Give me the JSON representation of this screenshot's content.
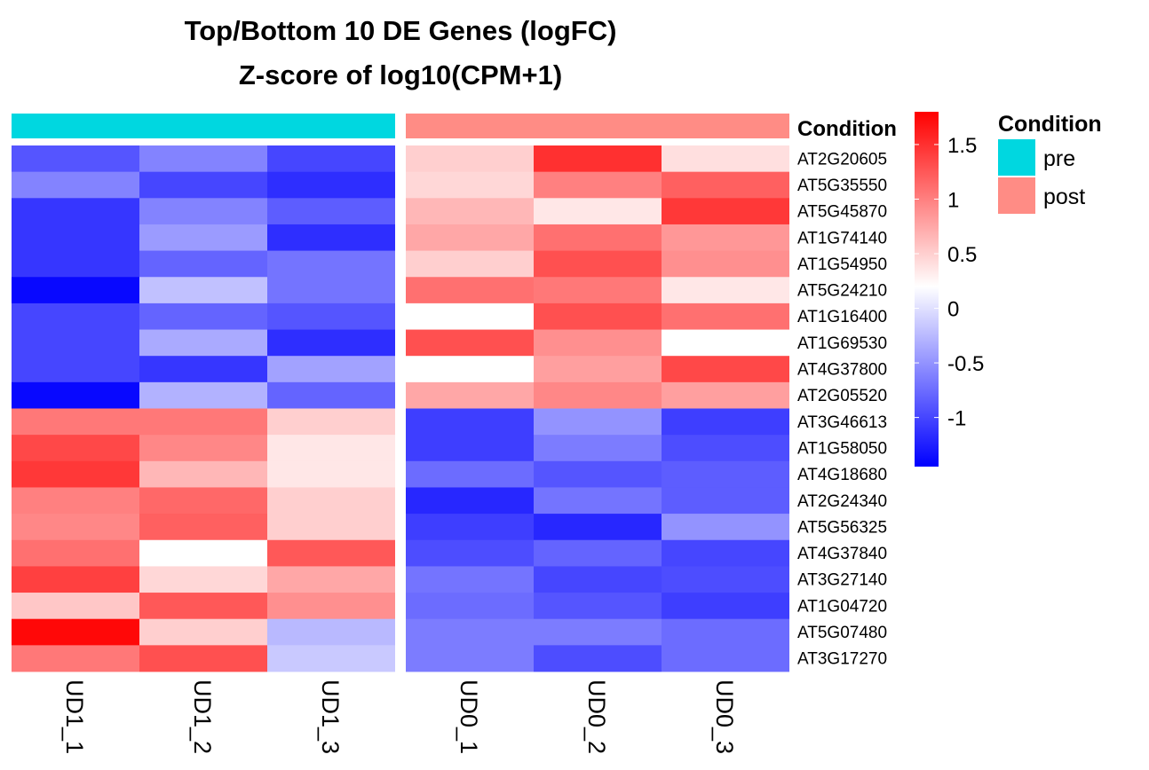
{
  "chart_data": {
    "type": "heatmap",
    "title": "Top/Bottom 10 DE Genes (logFC)",
    "subtitle": "Z-score of log10(CPM+1)",
    "columns": [
      "UD1_1",
      "UD1_2",
      "UD1_3",
      "UD0_1",
      "UD0_2",
      "UD0_3"
    ],
    "column_conditions": [
      "pre",
      "pre",
      "pre",
      "post",
      "post",
      "post"
    ],
    "rows": [
      "AT2G20605",
      "AT5G35550",
      "AT5G45870",
      "AT1G74140",
      "AT1G54950",
      "AT5G24210",
      "AT1G16400",
      "AT1G69530",
      "AT4G37800",
      "AT2G05520",
      "AT3G46613",
      "AT1G58050",
      "AT4G18680",
      "AT2G24340",
      "AT5G56325",
      "AT4G37840",
      "AT3G27140",
      "AT1G04720",
      "AT5G07480",
      "AT3G17270"
    ],
    "values": [
      [
        -0.9,
        -0.6,
        -1.0,
        0.5,
        1.5,
        0.4
      ],
      [
        -0.6,
        -1.0,
        -1.15,
        0.45,
        1.0,
        1.2
      ],
      [
        -1.1,
        -0.6,
        -0.85,
        0.65,
        0.35,
        1.45
      ],
      [
        -1.1,
        -0.45,
        -1.15,
        0.75,
        1.1,
        0.85
      ],
      [
        -1.1,
        -0.8,
        -0.7,
        0.5,
        1.3,
        0.9
      ],
      [
        -1.4,
        -0.2,
        -0.7,
        1.1,
        1.05,
        0.35
      ],
      [
        -1.0,
        -0.8,
        -0.9,
        0.2,
        1.3,
        1.1
      ],
      [
        -1.0,
        -0.35,
        -1.15,
        1.3,
        0.9,
        0.2
      ],
      [
        -1.0,
        -1.1,
        -0.4,
        0.2,
        0.8,
        1.35
      ],
      [
        -1.4,
        -0.3,
        -0.8,
        0.75,
        0.95,
        0.8
      ],
      [
        1.05,
        1.05,
        0.5,
        -1.05,
        -0.5,
        -1.05
      ],
      [
        1.35,
        0.95,
        0.35,
        -1.05,
        -0.65,
        -0.95
      ],
      [
        1.45,
        0.65,
        0.35,
        -0.75,
        -0.9,
        -0.85
      ],
      [
        1.0,
        1.15,
        0.5,
        -1.2,
        -0.7,
        -0.85
      ],
      [
        0.95,
        1.2,
        0.5,
        -1.05,
        -1.2,
        -0.5
      ],
      [
        1.1,
        0.2,
        1.25,
        -0.95,
        -0.8,
        -1.0
      ],
      [
        1.4,
        0.45,
        0.75,
        -0.7,
        -1.0,
        -0.95
      ],
      [
        0.55,
        1.25,
        0.9,
        -0.75,
        -0.9,
        -1.05
      ],
      [
        1.75,
        0.5,
        -0.25,
        -0.65,
        -0.65,
        -0.75
      ],
      [
        1.05,
        1.3,
        -0.15,
        -0.65,
        -0.95,
        -0.75
      ]
    ],
    "color_scale": {
      "min": -1.45,
      "mid": 0.2,
      "max": 1.8,
      "low_color": "#0000ff",
      "mid_color": "#ffffff",
      "high_color": "#ff0000",
      "ticks": [
        1.5,
        1,
        0.5,
        0,
        -0.5,
        -1
      ],
      "tick_labels": [
        "1.5",
        "1",
        "0.5",
        "0",
        "-0.5",
        "-1"
      ]
    },
    "annotation": {
      "label": "Condition",
      "legend_title": "Condition",
      "legend_items": [
        {
          "label": "pre",
          "color": "#00d7e0"
        },
        {
          "label": "post",
          "color": "#ff8c85"
        }
      ]
    },
    "column_split": "pre | post",
    "legend_placement": "right"
  }
}
